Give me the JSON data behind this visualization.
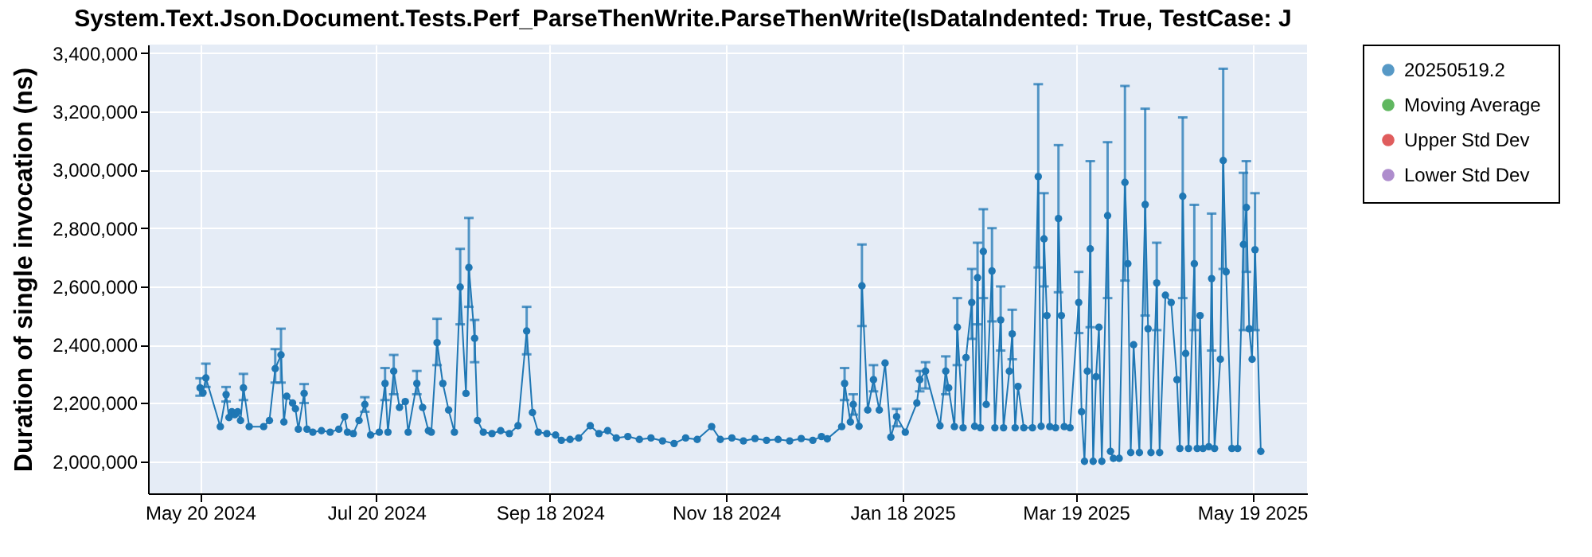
{
  "chart_data": {
    "type": "line",
    "title": "System.Text.Json.Document.Tests.Perf_ParseThenWrite.ParseThenWrite(IsDataIndented: True, TestCase: J",
    "ylabel": "Duration of single invocation (ns)",
    "x": [
      "2024-05-20",
      "2024-05-21",
      "2024-05-22",
      "2024-05-27",
      "2024-05-29",
      "2024-05-30",
      "2024-05-31",
      "2024-06-01",
      "2024-06-02",
      "2024-06-03",
      "2024-06-04",
      "2024-06-06",
      "2024-06-11",
      "2024-06-13",
      "2024-06-15",
      "2024-06-17",
      "2024-06-18",
      "2024-06-19",
      "2024-06-21",
      "2024-06-22",
      "2024-06-23",
      "2024-06-25",
      "2024-06-26",
      "2024-06-28",
      "2024-07-01",
      "2024-07-04",
      "2024-07-07",
      "2024-07-09",
      "2024-07-10",
      "2024-07-12",
      "2024-07-14",
      "2024-07-16",
      "2024-07-18",
      "2024-07-21",
      "2024-07-23",
      "2024-07-24",
      "2024-07-26",
      "2024-07-28",
      "2024-07-30",
      "2024-07-31",
      "2024-08-03",
      "2024-08-05",
      "2024-08-07",
      "2024-08-08",
      "2024-08-10",
      "2024-08-12",
      "2024-08-14",
      "2024-08-16",
      "2024-08-18",
      "2024-08-20",
      "2024-08-21",
      "2024-08-23",
      "2024-08-24",
      "2024-08-26",
      "2024-08-29",
      "2024-09-01",
      "2024-09-04",
      "2024-09-07",
      "2024-09-10",
      "2024-09-12",
      "2024-09-14",
      "2024-09-17",
      "2024-09-20",
      "2024-09-22",
      "2024-09-25",
      "2024-09-28",
      "2024-10-02",
      "2024-10-05",
      "2024-10-08",
      "2024-10-11",
      "2024-10-15",
      "2024-10-19",
      "2024-10-23",
      "2024-10-27",
      "2024-10-31",
      "2024-11-04",
      "2024-11-08",
      "2024-11-13",
      "2024-11-16",
      "2024-11-20",
      "2024-11-24",
      "2024-11-28",
      "2024-12-02",
      "2024-12-06",
      "2024-12-10",
      "2024-12-14",
      "2024-12-18",
      "2024-12-21",
      "2024-12-23",
      "2024-12-28",
      "2024-12-29",
      "2024-12-31",
      "2025-01-01",
      "2025-01-03",
      "2025-01-04",
      "2025-01-06",
      "2025-01-08",
      "2025-01-10",
      "2025-01-12",
      "2025-01-14",
      "2025-01-16",
      "2025-01-19",
      "2025-01-23",
      "2025-01-24",
      "2025-01-26",
      "2025-01-31",
      "2025-02-02",
      "2025-02-03",
      "2025-02-05",
      "2025-02-06",
      "2025-02-08",
      "2025-02-09",
      "2025-02-11",
      "2025-02-12",
      "2025-02-13",
      "2025-02-14",
      "2025-02-15",
      "2025-02-16",
      "2025-02-18",
      "2025-02-19",
      "2025-02-21",
      "2025-02-22",
      "2025-02-24",
      "2025-02-25",
      "2025-02-26",
      "2025-02-27",
      "2025-03-01",
      "2025-03-04",
      "2025-03-06",
      "2025-03-07",
      "2025-03-08",
      "2025-03-09",
      "2025-03-10",
      "2025-03-12",
      "2025-03-13",
      "2025-03-14",
      "2025-03-15",
      "2025-03-17",
      "2025-03-20",
      "2025-03-21",
      "2025-03-22",
      "2025-03-23",
      "2025-03-24",
      "2025-03-25",
      "2025-03-26",
      "2025-03-27",
      "2025-03-28",
      "2025-03-30",
      "2025-03-31",
      "2025-04-01",
      "2025-04-03",
      "2025-04-05",
      "2025-04-06",
      "2025-04-07",
      "2025-04-08",
      "2025-04-10",
      "2025-04-12",
      "2025-04-13",
      "2025-04-14",
      "2025-04-16",
      "2025-04-17",
      "2025-04-19",
      "2025-04-21",
      "2025-04-23",
      "2025-04-24",
      "2025-04-25",
      "2025-04-26",
      "2025-04-27",
      "2025-04-29",
      "2025-04-30",
      "2025-05-01",
      "2025-05-02",
      "2025-05-04",
      "2025-05-05",
      "2025-05-06",
      "2025-05-08",
      "2025-05-09",
      "2025-05-10",
      "2025-05-12",
      "2025-05-14",
      "2025-05-16",
      "2025-05-17",
      "2025-05-18",
      "2025-05-19",
      "2025-05-20",
      "2025-05-22"
    ],
    "series": [
      {
        "name": "20250519.2",
        "color": "#1f77b4",
        "values": [
          2252000,
          2235000,
          2286000,
          2119000,
          2229000,
          2150000,
          2170000,
          2160000,
          2170000,
          2140000,
          2252000,
          2119000,
          2119000,
          2140000,
          2318000,
          2365000,
          2135000,
          2223000,
          2200000,
          2180000,
          2110000,
          2233000,
          2110000,
          2100000,
          2105000,
          2100000,
          2110000,
          2153000,
          2100000,
          2095000,
          2140000,
          2195000,
          2090000,
          2100000,
          2267000,
          2100000,
          2309000,
          2185000,
          2205000,
          2100000,
          2267000,
          2185000,
          2105000,
          2100000,
          2407000,
          2267000,
          2176000,
          2100000,
          2598000,
          2233000,
          2665000,
          2422000,
          2140000,
          2100000,
          2095000,
          2105000,
          2095000,
          2122000,
          2447000,
          2167000,
          2100000,
          2095000,
          2090000,
          2072000,
          2075000,
          2080000,
          2122000,
          2095000,
          2105000,
          2080000,
          2085000,
          2075000,
          2080000,
          2070000,
          2061000,
          2080000,
          2075000,
          2119000,
          2075000,
          2080000,
          2070000,
          2078000,
          2072000,
          2075000,
          2070000,
          2078000,
          2072000,
          2085000,
          2077000,
          2119000,
          2267000,
          2135000,
          2195000,
          2120000,
          2602000,
          2176000,
          2280000,
          2176000,
          2337000,
          2083000,
          2153000,
          2100000,
          2200000,
          2280000,
          2309000,
          2122000,
          2309000,
          2252000,
          2119000,
          2460000,
          2115000,
          2356000,
          2545000,
          2120000,
          2630000,
          2115000,
          2720000,
          2195000,
          2653000,
          2115000,
          2485000,
          2115000,
          2309000,
          2437000,
          2115000,
          2257000,
          2115000,
          2115000,
          2977000,
          2120000,
          2763000,
          2500000,
          2119000,
          2115000,
          2833000,
          2500000,
          2119000,
          2115000,
          2545000,
          2170000,
          2000000,
          2309000,
          2729000,
          2000000,
          2290000,
          2460000,
          2000000,
          2843000,
          2034000,
          2010000,
          2010000,
          2957000,
          2678000,
          2030000,
          2400000,
          2030000,
          2881000,
          2455000,
          2030000,
          2612000,
          2030000,
          2570000,
          2545000,
          2280000,
          2044000,
          2909000,
          2370000,
          2044000,
          2678000,
          2044000,
          2500000,
          2044000,
          2050000,
          2627000,
          2044000,
          2350000,
          3032000,
          2650000,
          2044000,
          2044000,
          2744000,
          2871000,
          2455000,
          2350000,
          2726000,
          2034000
        ],
        "errors": [
          [
            2225000,
            2285000
          ],
          null,
          [
            2255000,
            2335000
          ],
          null,
          [
            2205000,
            2255000
          ],
          null,
          null,
          null,
          null,
          null,
          [
            2210000,
            2300000
          ],
          null,
          null,
          null,
          [
            2270000,
            2385000
          ],
          [
            2270000,
            2455000
          ],
          null,
          null,
          null,
          null,
          null,
          [
            2200000,
            2265000
          ],
          null,
          null,
          null,
          null,
          null,
          null,
          null,
          null,
          null,
          [
            2170000,
            2220000
          ],
          null,
          null,
          [
            2210000,
            2320000
          ],
          null,
          [
            2230000,
            2365000
          ],
          null,
          null,
          null,
          [
            2230000,
            2310000
          ],
          null,
          null,
          null,
          [
            2330000,
            2489000
          ],
          null,
          null,
          null,
          [
            2470000,
            2729000
          ],
          null,
          [
            2530000,
            2835000
          ],
          [
            2340000,
            2485000
          ],
          null,
          null,
          null,
          null,
          null,
          null,
          [
            2367000,
            2530000
          ],
          null,
          null,
          null,
          null,
          null,
          null,
          null,
          null,
          null,
          null,
          null,
          null,
          null,
          null,
          null,
          null,
          null,
          null,
          null,
          null,
          null,
          null,
          null,
          null,
          null,
          null,
          null,
          null,
          null,
          null,
          null,
          [
            2210000,
            2320000
          ],
          null,
          [
            2160000,
            2230000
          ],
          null,
          [
            2464000,
            2744000
          ],
          null,
          [
            2240000,
            2330000
          ],
          null,
          null,
          null,
          [
            2120000,
            2180000
          ],
          null,
          null,
          [
            2240000,
            2310000
          ],
          [
            2250000,
            2340000
          ],
          null,
          [
            2230000,
            2360000
          ],
          null,
          null,
          [
            2330000,
            2560000
          ],
          null,
          null,
          [
            2420000,
            2660000
          ],
          null,
          [
            2470000,
            2750000
          ],
          null,
          [
            2560000,
            2865000
          ],
          null,
          [
            2480000,
            2800000
          ],
          null,
          [
            2380000,
            2600000
          ],
          null,
          null,
          [
            2350000,
            2520000
          ],
          null,
          null,
          null,
          null,
          [
            2665000,
            3294000
          ],
          null,
          [
            2600000,
            2920000
          ],
          null,
          null,
          null,
          [
            2580000,
            3085000
          ],
          null,
          null,
          null,
          [
            2440000,
            2650000
          ],
          null,
          null,
          null,
          [
            2460000,
            3030000
          ],
          null,
          null,
          null,
          null,
          [
            2560000,
            3095000
          ],
          null,
          null,
          null,
          [
            2620000,
            3288000
          ],
          null,
          null,
          null,
          null,
          [
            2500000,
            3210000
          ],
          null,
          null,
          [
            2450000,
            2750000
          ],
          null,
          null,
          null,
          null,
          null,
          [
            2560000,
            3180000
          ],
          null,
          null,
          [
            2450000,
            2880000
          ],
          null,
          null,
          null,
          null,
          [
            2380000,
            2850000
          ],
          null,
          null,
          [
            2660000,
            3347000
          ],
          null,
          null,
          null,
          [
            2450000,
            2990000
          ],
          [
            2650000,
            3030000
          ],
          null,
          null,
          [
            2450000,
            2920000
          ],
          null
        ]
      },
      {
        "name": "Moving Average",
        "color": "#2ca02c",
        "values": [
          null,
          null,
          null,
          null,
          null,
          null,
          null,
          null,
          null,
          null,
          null,
          null,
          null,
          null,
          null,
          null,
          null,
          null,
          null,
          null,
          null,
          null,
          null,
          null,
          null,
          null,
          null,
          null,
          null,
          null,
          null,
          null,
          null,
          null,
          null,
          null,
          null,
          null,
          null,
          null,
          null,
          null,
          null,
          null,
          null,
          null,
          null,
          null,
          null,
          null,
          null,
          null,
          null,
          null,
          null,
          null,
          null,
          null,
          null,
          null,
          null,
          null,
          null,
          null,
          null,
          null,
          null,
          null,
          null,
          null,
          null,
          null,
          null,
          null,
          null,
          null,
          null,
          null,
          null,
          null,
          null,
          null,
          null,
          null,
          null,
          null,
          null,
          null,
          null,
          null,
          null,
          null,
          null,
          null,
          null,
          null,
          null,
          null,
          null,
          null,
          null,
          null,
          null,
          null,
          null,
          null,
          null,
          null,
          null,
          null,
          null,
          null,
          null,
          null,
          null,
          null,
          null,
          null,
          null,
          null,
          null,
          null,
          null,
          null,
          null,
          null,
          null,
          null,
          null,
          null,
          null,
          null,
          null,
          null,
          null,
          null,
          null,
          null,
          null,
          null,
          null,
          null,
          null,
          null,
          null,
          null,
          null,
          null,
          null,
          null,
          null,
          null,
          null,
          null,
          null,
          null,
          null,
          null,
          null,
          null,
          null,
          null,
          null,
          null,
          null,
          null,
          null,
          null,
          null,
          null,
          null,
          null,
          null,
          null,
          null,
          null,
          null,
          null,
          null,
          null,
          null,
          null,
          null,
          null,
          null,
          null
        ]
      },
      {
        "name": "Upper Std Dev",
        "color": "#d62728",
        "values": [
          null,
          null,
          null,
          null,
          null,
          null,
          null,
          null,
          null,
          null,
          null,
          null,
          null,
          null,
          null,
          null,
          null,
          null,
          null,
          null,
          null,
          null,
          null,
          null,
          null,
          null,
          null,
          null,
          null,
          null,
          null,
          null,
          null,
          null,
          null,
          null,
          null,
          null,
          null,
          null,
          null,
          null,
          null,
          null,
          null,
          null,
          null,
          null,
          null,
          null,
          null,
          null,
          null,
          null,
          null,
          null,
          null,
          null,
          null,
          null,
          null,
          null,
          null,
          null,
          null,
          null,
          null,
          null,
          null,
          null,
          null,
          null,
          null,
          null,
          null,
          null,
          null,
          null,
          null,
          null,
          null,
          null,
          null,
          null,
          null,
          null,
          null,
          null,
          null,
          null,
          null,
          null,
          null,
          null,
          null,
          null,
          null,
          null,
          null,
          null,
          null,
          null,
          null,
          null,
          null,
          null,
          null,
          null,
          null,
          null,
          null,
          null,
          null,
          null,
          null,
          null,
          null,
          null,
          null,
          null,
          null,
          null,
          null,
          null,
          null,
          null,
          null,
          null,
          null,
          null,
          null,
          null,
          null,
          null,
          null,
          null,
          null,
          null,
          null,
          null,
          null,
          null,
          null,
          null,
          null,
          null,
          null,
          null,
          null,
          null,
          null,
          null,
          null,
          null,
          null,
          null,
          null,
          null,
          null,
          null,
          null,
          null,
          null,
          null,
          null,
          null,
          null,
          null,
          null,
          null,
          null,
          null,
          null,
          null,
          null,
          null,
          null,
          null,
          null,
          null,
          null,
          null,
          null,
          null,
          null,
          null
        ]
      },
      {
        "name": "Lower Std Dev",
        "color": "#9467bd",
        "values": [
          null,
          null,
          null,
          null,
          null,
          null,
          null,
          null,
          null,
          null,
          null,
          null,
          null,
          null,
          null,
          null,
          null,
          null,
          null,
          null,
          null,
          null,
          null,
          null,
          null,
          null,
          null,
          null,
          null,
          null,
          null,
          null,
          null,
          null,
          null,
          null,
          null,
          null,
          null,
          null,
          null,
          null,
          null,
          null,
          null,
          null,
          null,
          null,
          null,
          null,
          null,
          null,
          null,
          null,
          null,
          null,
          null,
          null,
          null,
          null,
          null,
          null,
          null,
          null,
          null,
          null,
          null,
          null,
          null,
          null,
          null,
          null,
          null,
          null,
          null,
          null,
          null,
          null,
          null,
          null,
          null,
          null,
          null,
          null,
          null,
          null,
          null,
          null,
          null,
          null,
          null,
          null,
          null,
          null,
          null,
          null,
          null,
          null,
          null,
          null,
          null,
          null,
          null,
          null,
          null,
          null,
          null,
          null,
          null,
          null,
          null,
          null,
          null,
          null,
          null,
          null,
          null,
          null,
          null,
          null,
          null,
          null,
          null,
          null,
          null,
          null,
          null,
          null,
          null,
          null,
          null,
          null,
          null,
          null,
          null,
          null,
          null,
          null,
          null,
          null,
          null,
          null,
          null,
          null,
          null,
          null,
          null,
          null,
          null,
          null,
          null,
          null,
          null,
          null,
          null,
          null,
          null,
          null,
          null,
          null,
          null,
          null,
          null,
          null,
          null,
          null,
          null,
          null,
          null,
          null,
          null,
          null,
          null,
          null,
          null,
          null,
          null,
          null,
          null,
          null,
          null,
          null,
          null,
          null,
          null,
          null
        ]
      }
    ],
    "xlim": [
      "2024-05-02",
      "2025-06-07"
    ],
    "xticks": [
      {
        "value": "2024-05-20",
        "label": "May 20 2024"
      },
      {
        "value": "2024-07-20",
        "label": "Jul 20 2024"
      },
      {
        "value": "2024-09-18",
        "label": "Sep 18 2024"
      },
      {
        "value": "2024-11-18",
        "label": "Nov 18 2024"
      },
      {
        "value": "2025-01-18",
        "label": "Jan 18 2025"
      },
      {
        "value": "2025-03-19",
        "label": "Mar 19 2025"
      },
      {
        "value": "2025-05-19",
        "label": "May 19 2025"
      }
    ],
    "ylim": [
      1890000,
      3430000
    ],
    "yticks": [
      {
        "value": 2000000,
        "label": "2,000,000"
      },
      {
        "value": 2200000,
        "label": "2,200,000"
      },
      {
        "value": 2400000,
        "label": "2,400,000"
      },
      {
        "value": 2600000,
        "label": "2,600,000"
      },
      {
        "value": 2800000,
        "label": "2,800,000"
      },
      {
        "value": 3000000,
        "label": "3,000,000"
      },
      {
        "value": 3200000,
        "label": "3,200,000"
      },
      {
        "value": 3400000,
        "label": "3,400,000"
      }
    ],
    "grid": true,
    "legend": "right",
    "marker": "circle",
    "line_style": "solid"
  }
}
